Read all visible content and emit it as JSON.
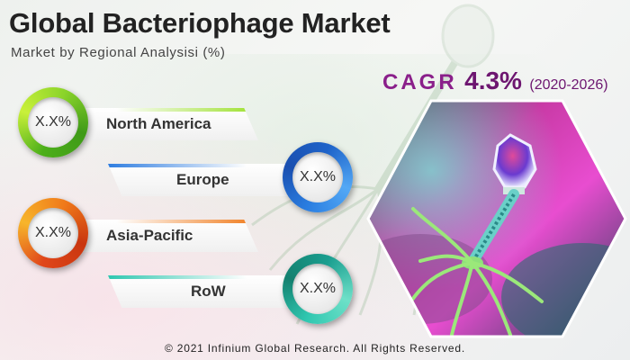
{
  "header": {
    "title": "Global Bacteriophage Market",
    "subtitle": "Market by Regional Analysisi (%)"
  },
  "cagr": {
    "label": "CAGR",
    "value": "4.3%",
    "period": "(2020-2026)"
  },
  "regions": [
    {
      "name": "North America",
      "value": "X.X%",
      "accent": "#9be02a"
    },
    {
      "name": "Europe",
      "value": "X.X%",
      "accent": "#2f7de0"
    },
    {
      "name": "Asia-Pacific",
      "value": "X.X%",
      "accent": "#f07a1a"
    },
    {
      "name": "RoW",
      "value": "X.X%",
      "accent": "#2fc7b0"
    }
  ],
  "footer": {
    "copyright": "© 2021 Infinium Global Research. All Rights Reserved."
  },
  "colors": {
    "cagr": "#8a1f8a",
    "title": "#222222"
  }
}
